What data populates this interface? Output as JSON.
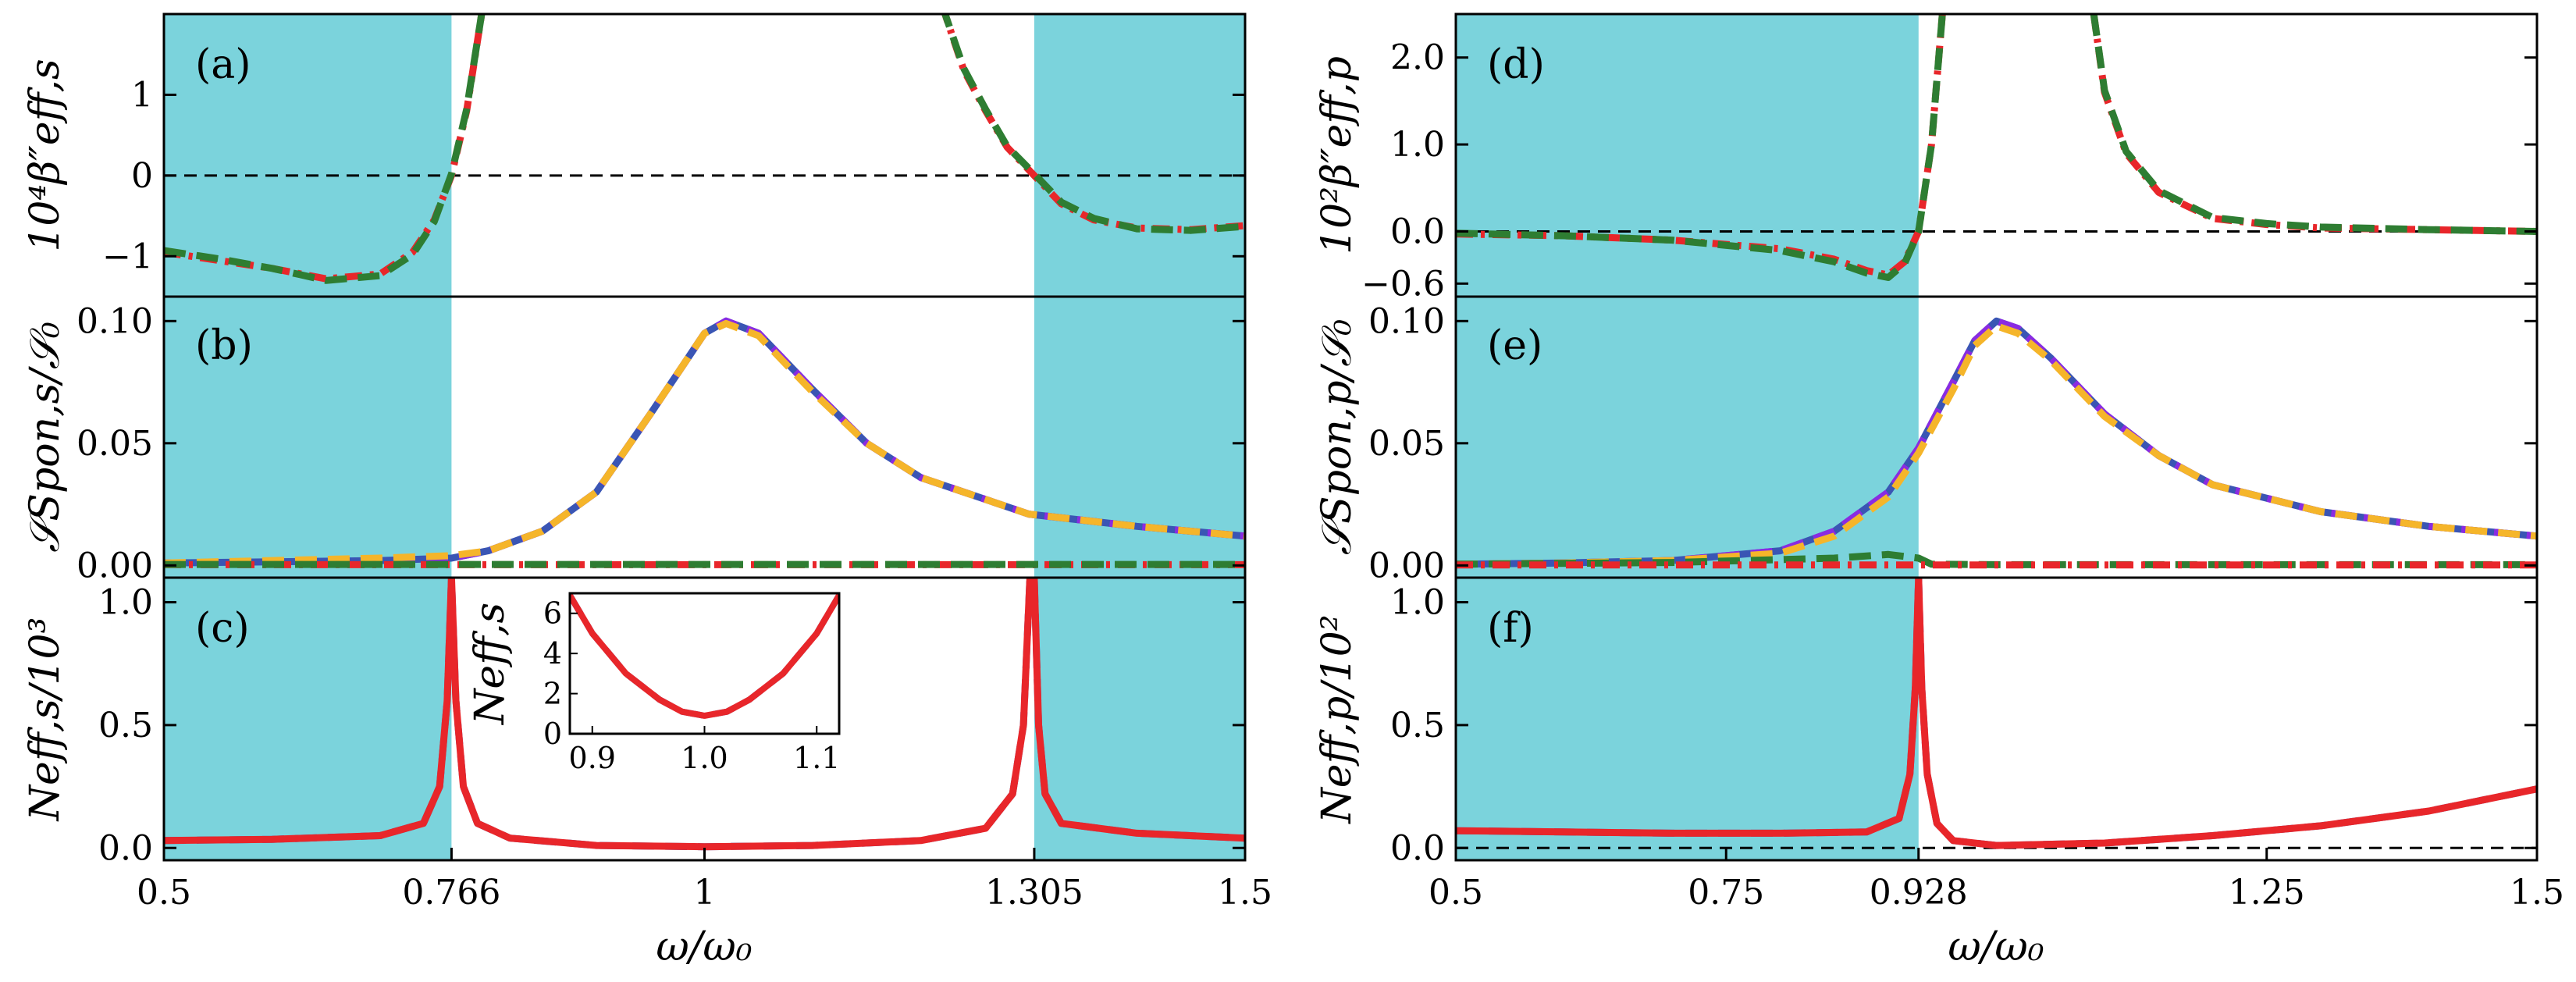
{
  "figure": {
    "xlabel": "ω/ω₀",
    "colors": {
      "band": "#7bd3dc",
      "red": "#e8262a",
      "green": "#2e7d32",
      "blue": "#3a55b4",
      "purple": "#8a2be2",
      "orange": "#f5b52a",
      "black": "#000000"
    }
  },
  "chart_data": [
    {
      "id": "a",
      "panel_label": "(a)",
      "type": "line",
      "ylabel": "10⁴β″eff,s",
      "xlim": [
        0.5,
        1.5
      ],
      "ylim": [
        -1.5,
        2.0
      ],
      "yticks": [
        -1,
        0,
        1
      ],
      "ytick_labels": [
        "−1",
        "0",
        "1"
      ],
      "shaded_x": [
        [
          0.5,
          0.766
        ],
        [
          1.305,
          1.5
        ]
      ],
      "hlines": [
        0
      ],
      "series": [
        {
          "name": "analytic",
          "style": "dashdot",
          "color": "red",
          "x": [
            0.5,
            0.55,
            0.6,
            0.65,
            0.7,
            0.73,
            0.75,
            0.766,
            0.78,
            0.795
          ],
          "y": [
            -0.95,
            -1.05,
            -1.15,
            -1.28,
            -1.22,
            -0.95,
            -0.55,
            0.0,
            0.8,
            2.1
          ]
        },
        {
          "name": "analytic-right",
          "style": "dashdot",
          "color": "red",
          "x": [
            1.22,
            1.24,
            1.26,
            1.28,
            1.305,
            1.33,
            1.36,
            1.4,
            1.45,
            1.5
          ],
          "y": [
            2.1,
            1.3,
            0.8,
            0.35,
            0.0,
            -0.35,
            -0.55,
            -0.65,
            -0.67,
            -0.62
          ]
        },
        {
          "name": "numerical",
          "style": "dash",
          "color": "green",
          "x": [
            0.5,
            0.55,
            0.6,
            0.65,
            0.7,
            0.73,
            0.75,
            0.766,
            0.78,
            0.795
          ],
          "y": [
            -0.93,
            -1.03,
            -1.15,
            -1.3,
            -1.24,
            -0.98,
            -0.57,
            0.02,
            0.82,
            2.1
          ]
        },
        {
          "name": "numerical-right",
          "style": "dash",
          "color": "green",
          "x": [
            1.22,
            1.24,
            1.26,
            1.28,
            1.305,
            1.33,
            1.36,
            1.4,
            1.45,
            1.5
          ],
          "y": [
            2.1,
            1.32,
            0.82,
            0.36,
            0.02,
            -0.33,
            -0.53,
            -0.66,
            -0.68,
            -0.63
          ]
        }
      ]
    },
    {
      "id": "b",
      "panel_label": "(b)",
      "type": "line",
      "ylabel": "𝒮Spon,s/𝒮₀",
      "xlim": [
        0.5,
        1.5
      ],
      "ylim": [
        -0.005,
        0.11
      ],
      "yticks": [
        0.0,
        0.05,
        0.1
      ],
      "ytick_labels": [
        "0.00",
        "0.05",
        "0.10"
      ],
      "shaded_x": [
        [
          0.5,
          0.766
        ],
        [
          1.305,
          1.5
        ]
      ],
      "hlines": [],
      "series": [
        {
          "name": "total",
          "style": "solid",
          "color": "blue",
          "x": [
            0.5,
            0.6,
            0.7,
            0.766,
            0.8,
            0.85,
            0.9,
            0.95,
            1.0,
            1.02,
            1.05,
            1.1,
            1.15,
            1.2,
            1.3,
            1.4,
            1.5
          ],
          "y": [
            0.001,
            0.0015,
            0.002,
            0.003,
            0.006,
            0.014,
            0.03,
            0.062,
            0.095,
            0.1,
            0.095,
            0.072,
            0.05,
            0.036,
            0.021,
            0.016,
            0.012
          ]
        },
        {
          "name": "purple-dash",
          "style": "dash",
          "color": "purple",
          "x": [
            0.5,
            0.6,
            0.7,
            0.766,
            0.8,
            0.85,
            0.9,
            0.95,
            1.0,
            1.02,
            1.05,
            1.1,
            1.15,
            1.2,
            1.3,
            1.4,
            1.5
          ],
          "y": [
            0.001,
            0.0015,
            0.002,
            0.003,
            0.006,
            0.014,
            0.03,
            0.062,
            0.095,
            0.1,
            0.095,
            0.072,
            0.05,
            0.036,
            0.021,
            0.016,
            0.012
          ]
        },
        {
          "name": "orange-dash",
          "style": "dash",
          "color": "orange",
          "x": [
            0.5,
            0.6,
            0.7,
            0.766,
            0.8,
            0.85,
            0.9,
            0.95,
            1.0,
            1.02,
            1.05,
            1.1,
            1.15,
            1.2,
            1.3,
            1.4,
            1.5
          ],
          "y": [
            0.001,
            0.002,
            0.003,
            0.004,
            0.006,
            0.014,
            0.03,
            0.062,
            0.095,
            0.099,
            0.094,
            0.071,
            0.05,
            0.036,
            0.021,
            0.016,
            0.012
          ]
        },
        {
          "name": "red-dashdot",
          "style": "dashdot",
          "color": "red",
          "x": [
            0.5,
            1.5
          ],
          "y": [
            0.0003,
            0.0003
          ]
        },
        {
          "name": "green-dash",
          "style": "dash",
          "color": "green",
          "x": [
            0.5,
            1.5
          ],
          "y": [
            0.0004,
            0.0004
          ]
        }
      ]
    },
    {
      "id": "c",
      "panel_label": "(c)",
      "type": "line",
      "ylabel": "Neff,s/10³",
      "xlim": [
        0.5,
        1.5
      ],
      "ylim": [
        -0.05,
        1.1
      ],
      "yticks": [
        0.0,
        0.5,
        1.0
      ],
      "ytick_labels": [
        "0.0",
        "0.5",
        "1.0"
      ],
      "xticks": [
        0.5,
        0.766,
        1.0,
        1.305,
        1.5
      ],
      "xtick_labels": [
        "0.5",
        "0.766",
        "1",
        "1.305",
        "1.5"
      ],
      "shaded_x": [
        [
          0.5,
          0.766
        ],
        [
          1.305,
          1.5
        ]
      ],
      "hlines": [],
      "series": [
        {
          "name": "blue-dash",
          "style": "dash",
          "color": "blue",
          "x": [
            0.5,
            0.6,
            0.7,
            0.74,
            0.755,
            0.762,
            0.766,
            0.77,
            0.777,
            0.79,
            0.82,
            0.9,
            1.0,
            1.1,
            1.2,
            1.26,
            1.285,
            1.295,
            1.301,
            1.305,
            1.309,
            1.315,
            1.33,
            1.4,
            1.5
          ],
          "y": [
            0.03,
            0.035,
            0.05,
            0.1,
            0.25,
            0.6,
            1.1,
            0.6,
            0.25,
            0.1,
            0.04,
            0.01,
            0.005,
            0.01,
            0.03,
            0.08,
            0.22,
            0.5,
            1.1,
            1.1,
            0.5,
            0.22,
            0.1,
            0.06,
            0.04
          ]
        },
        {
          "name": "red-solid",
          "style": "solid",
          "color": "red",
          "x": [
            0.5,
            0.6,
            0.7,
            0.74,
            0.755,
            0.762,
            0.766,
            0.77,
            0.777,
            0.79,
            0.82,
            0.9,
            1.0,
            1.1,
            1.2,
            1.26,
            1.285,
            1.295,
            1.301,
            1.305,
            1.309,
            1.315,
            1.33,
            1.4,
            1.5
          ],
          "y": [
            0.03,
            0.035,
            0.05,
            0.1,
            0.25,
            0.6,
            1.1,
            0.6,
            0.25,
            0.1,
            0.04,
            0.01,
            0.005,
            0.01,
            0.03,
            0.08,
            0.22,
            0.5,
            1.1,
            1.1,
            0.5,
            0.22,
            0.1,
            0.06,
            0.04
          ]
        }
      ],
      "inset": {
        "ylabel": "Neff,s",
        "xlim": [
          0.88,
          1.12
        ],
        "ylim": [
          0,
          7
        ],
        "xticks": [
          0.9,
          1.0,
          1.1
        ],
        "xtick_labels": [
          "0.9",
          "1.0",
          "1.1"
        ],
        "yticks": [
          0,
          2,
          4,
          6
        ],
        "ytick_labels": [
          "0",
          "2",
          "4",
          "6"
        ],
        "series": [
          {
            "name": "inset-blue",
            "style": "dash",
            "color": "blue",
            "x": [
              0.88,
              0.9,
              0.93,
              0.96,
              0.98,
              1.0,
              1.02,
              1.04,
              1.07,
              1.1,
              1.12
            ],
            "y": [
              6.9,
              5.0,
              3.0,
              1.7,
              1.1,
              0.9,
              1.1,
              1.7,
              3.0,
              5.0,
              6.9
            ]
          },
          {
            "name": "inset-red",
            "style": "solid",
            "color": "red",
            "x": [
              0.88,
              0.9,
              0.93,
              0.96,
              0.98,
              1.0,
              1.02,
              1.04,
              1.07,
              1.1,
              1.12
            ],
            "y": [
              6.9,
              5.0,
              3.0,
              1.7,
              1.1,
              0.9,
              1.1,
              1.7,
              3.0,
              5.0,
              6.9
            ]
          }
        ]
      }
    },
    {
      "id": "d",
      "panel_label": "(d)",
      "type": "line",
      "ylabel": "10²β″eff,p",
      "xlim": [
        0.5,
        1.5
      ],
      "ylim": [
        -0.75,
        2.5
      ],
      "yticks": [
        -0.6,
        0.0,
        1.0,
        2.0
      ],
      "ytick_labels": [
        "−0.6",
        "0.0",
        "1.0",
        "2.0"
      ],
      "shaded_x": [
        [
          0.5,
          0.928
        ]
      ],
      "hlines": [
        0
      ],
      "series": [
        {
          "name": "red-dashdot",
          "style": "dashdot",
          "color": "red",
          "x": [
            0.5,
            0.6,
            0.7,
            0.8,
            0.85,
            0.88,
            0.9,
            0.915,
            0.928,
            0.94,
            0.95
          ],
          "y": [
            -0.03,
            -0.05,
            -0.1,
            -0.2,
            -0.32,
            -0.45,
            -0.5,
            -0.35,
            0.0,
            1.0,
            2.5
          ]
        },
        {
          "name": "red-dashdot-right",
          "style": "dashdot",
          "color": "red",
          "x": [
            1.09,
            1.1,
            1.12,
            1.15,
            1.2,
            1.25,
            1.3,
            1.4,
            1.5
          ],
          "y": [
            2.5,
            1.6,
            0.9,
            0.45,
            0.15,
            0.08,
            0.04,
            0.02,
            0.0
          ]
        },
        {
          "name": "green-dash",
          "style": "dash",
          "color": "green",
          "x": [
            0.5,
            0.6,
            0.7,
            0.8,
            0.85,
            0.88,
            0.9,
            0.915,
            0.928,
            0.94,
            0.95
          ],
          "y": [
            -0.02,
            -0.05,
            -0.1,
            -0.22,
            -0.35,
            -0.48,
            -0.53,
            -0.37,
            0.0,
            1.0,
            2.5
          ]
        },
        {
          "name": "green-dash-right",
          "style": "dash",
          "color": "green",
          "x": [
            1.09,
            1.1,
            1.12,
            1.15,
            1.2,
            1.25,
            1.3,
            1.4,
            1.5
          ],
          "y": [
            2.5,
            1.62,
            0.92,
            0.47,
            0.16,
            0.09,
            0.05,
            0.02,
            0.0
          ]
        }
      ]
    },
    {
      "id": "e",
      "panel_label": "(e)",
      "type": "line",
      "ylabel": "𝒮Spon,p/𝒮₀",
      "xlim": [
        0.5,
        1.5
      ],
      "ylim": [
        -0.005,
        0.11
      ],
      "yticks": [
        0.0,
        0.05,
        0.1
      ],
      "ytick_labels": [
        "0.00",
        "0.05",
        "0.10"
      ],
      "shaded_x": [
        [
          0.5,
          0.928
        ]
      ],
      "hlines": [],
      "series": [
        {
          "name": "total",
          "style": "solid",
          "color": "blue",
          "x": [
            0.5,
            0.6,
            0.7,
            0.8,
            0.85,
            0.9,
            0.928,
            0.96,
            0.98,
            1.0,
            1.02,
            1.05,
            1.1,
            1.15,
            1.2,
            1.3,
            1.4,
            1.5
          ],
          "y": [
            0.0005,
            0.001,
            0.002,
            0.006,
            0.014,
            0.03,
            0.048,
            0.075,
            0.092,
            0.1,
            0.097,
            0.085,
            0.062,
            0.045,
            0.033,
            0.022,
            0.016,
            0.012
          ]
        },
        {
          "name": "purple-dash",
          "style": "dash",
          "color": "purple",
          "x": [
            0.5,
            0.6,
            0.7,
            0.8,
            0.85,
            0.9,
            0.928,
            0.96,
            0.98,
            1.0,
            1.02,
            1.05,
            1.1,
            1.15,
            1.2,
            1.3,
            1.4,
            1.5
          ],
          "y": [
            0.0005,
            0.001,
            0.002,
            0.006,
            0.014,
            0.03,
            0.048,
            0.075,
            0.092,
            0.1,
            0.097,
            0.085,
            0.062,
            0.045,
            0.033,
            0.022,
            0.016,
            0.012
          ]
        },
        {
          "name": "orange-dash",
          "style": "dash",
          "color": "orange",
          "x": [
            0.5,
            0.6,
            0.7,
            0.8,
            0.85,
            0.9,
            0.928,
            0.96,
            0.98,
            1.0,
            1.02,
            1.05,
            1.1,
            1.15,
            1.2,
            1.3,
            1.4,
            1.5
          ],
          "y": [
            0.0005,
            0.001,
            0.002,
            0.005,
            0.012,
            0.028,
            0.046,
            0.072,
            0.09,
            0.098,
            0.095,
            0.084,
            0.061,
            0.045,
            0.033,
            0.022,
            0.016,
            0.012
          ]
        },
        {
          "name": "green-dash",
          "style": "dash",
          "color": "green",
          "x": [
            0.5,
            0.7,
            0.85,
            0.9,
            0.928,
            0.94,
            1.0,
            1.5
          ],
          "y": [
            0.0005,
            0.0012,
            0.003,
            0.0045,
            0.003,
            0.0005,
            0.0003,
            0.0003
          ]
        },
        {
          "name": "red-dashdot",
          "style": "dashdot",
          "color": "red",
          "x": [
            0.5,
            1.5
          ],
          "y": [
            0.0002,
            0.0002
          ]
        }
      ]
    },
    {
      "id": "f",
      "panel_label": "(f)",
      "type": "line",
      "ylabel": "Neff,p/10²",
      "xlim": [
        0.5,
        1.5
      ],
      "ylim": [
        -0.05,
        1.1
      ],
      "yticks": [
        0.0,
        0.5,
        1.0
      ],
      "ytick_labels": [
        "0.0",
        "0.5",
        "1.0"
      ],
      "xticks": [
        0.5,
        0.75,
        0.928,
        1.25,
        1.5
      ],
      "xtick_labels": [
        "0.5",
        "0.75",
        "0.928",
        "1.25",
        "1.5"
      ],
      "shaded_x": [
        [
          0.5,
          0.928
        ]
      ],
      "hlines": [
        0
      ],
      "series": [
        {
          "name": "blue-dash",
          "style": "dash",
          "color": "blue",
          "x": [
            0.5,
            0.6,
            0.7,
            0.8,
            0.88,
            0.91,
            0.92,
            0.925,
            0.928,
            0.931,
            0.936,
            0.945,
            0.96,
            1.0,
            1.1,
            1.2,
            1.3,
            1.4,
            1.5
          ],
          "y": [
            0.07,
            0.065,
            0.06,
            0.06,
            0.065,
            0.12,
            0.3,
            0.65,
            1.1,
            0.65,
            0.3,
            0.1,
            0.03,
            0.01,
            0.02,
            0.05,
            0.09,
            0.15,
            0.24
          ]
        },
        {
          "name": "red-solid",
          "style": "solid",
          "color": "red",
          "x": [
            0.5,
            0.6,
            0.7,
            0.8,
            0.88,
            0.91,
            0.92,
            0.925,
            0.928,
            0.931,
            0.936,
            0.945,
            0.96,
            1.0,
            1.1,
            1.2,
            1.3,
            1.4,
            1.5
          ],
          "y": [
            0.07,
            0.065,
            0.06,
            0.06,
            0.065,
            0.12,
            0.3,
            0.65,
            1.1,
            0.65,
            0.3,
            0.1,
            0.03,
            0.01,
            0.02,
            0.05,
            0.09,
            0.15,
            0.24
          ]
        }
      ]
    }
  ]
}
